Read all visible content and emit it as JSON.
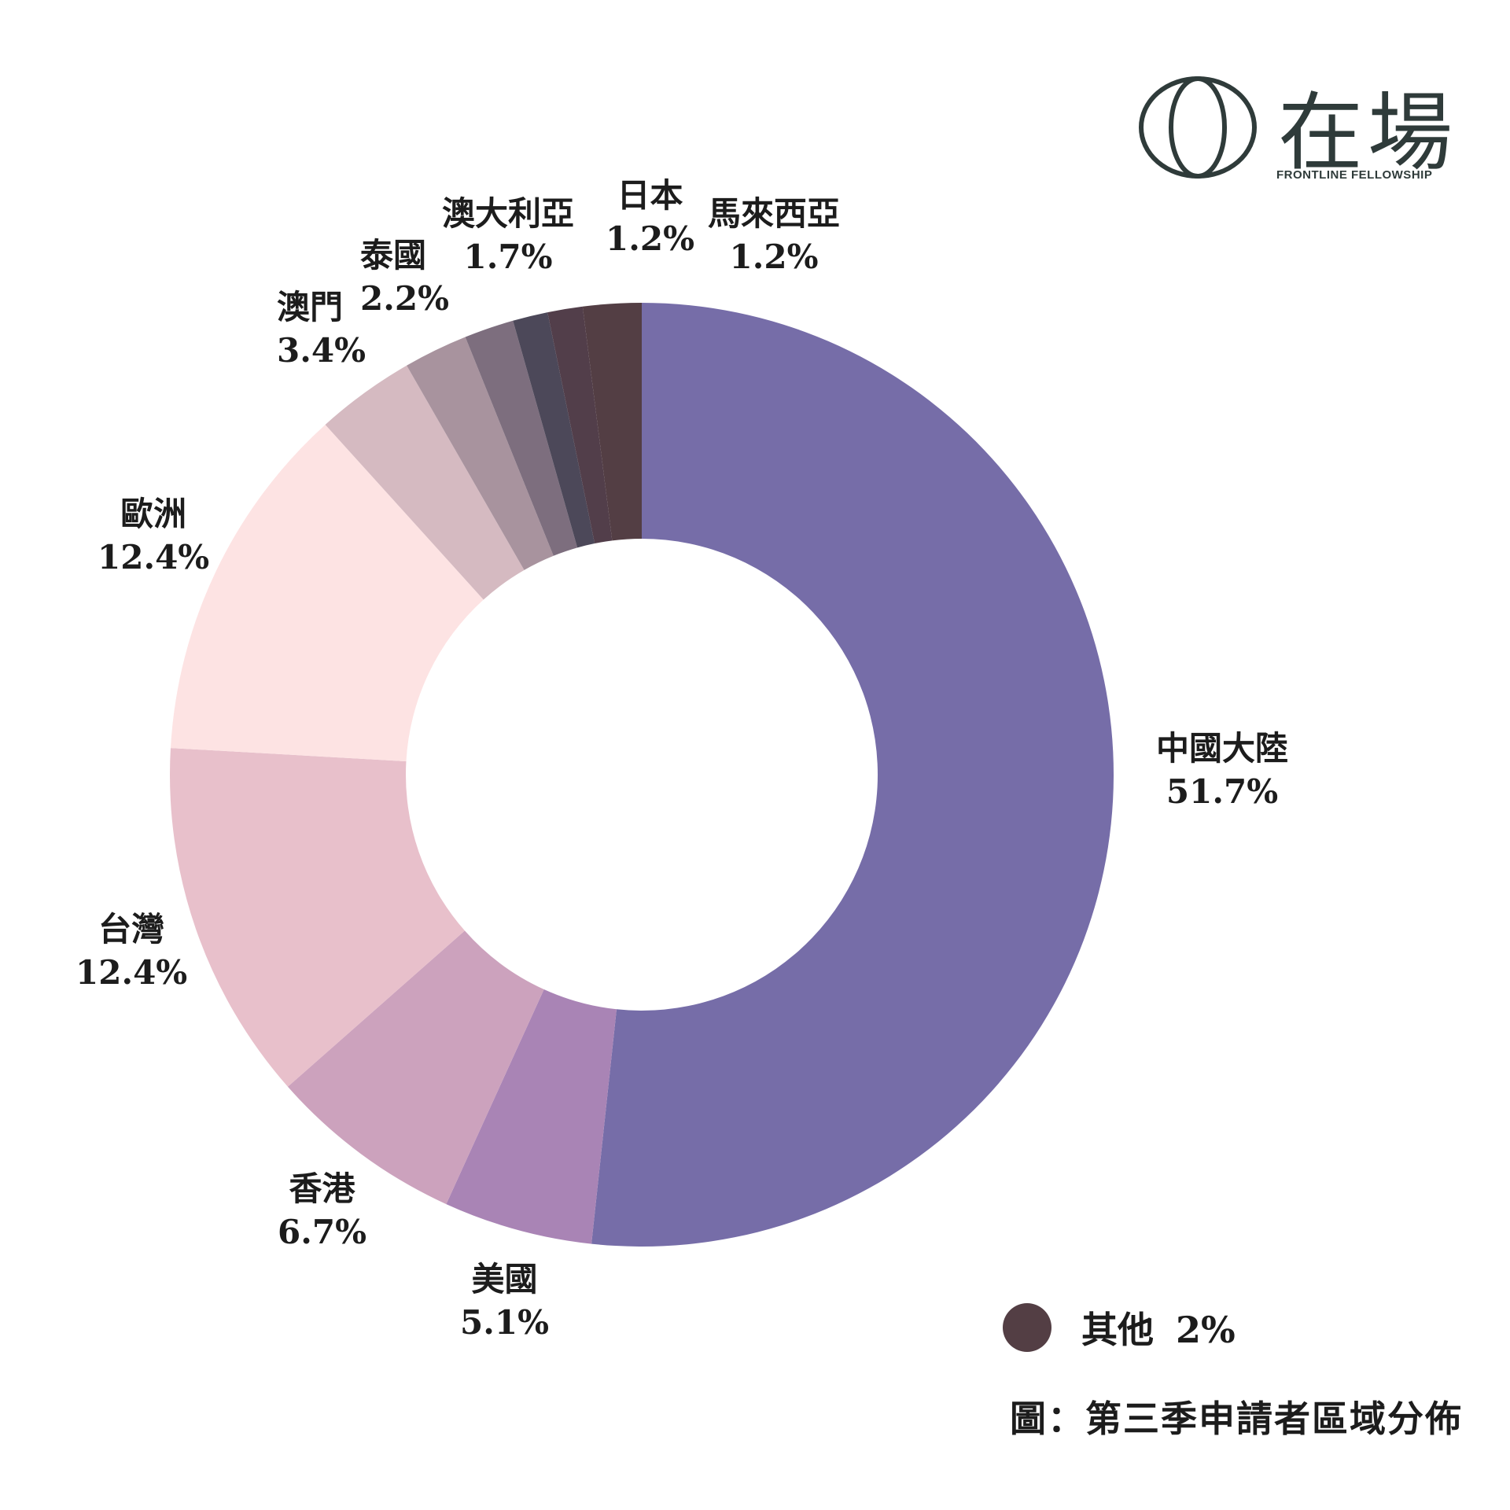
{
  "chart_data": {
    "type": "pie",
    "style": "donut",
    "slices": [
      {
        "label": "中國大陸",
        "value": 51.7,
        "pct_text": "51.7%",
        "color": "#766da8"
      },
      {
        "label": "美國",
        "value": 5.1,
        "pct_text": "5.1%",
        "color": "#a984b5"
      },
      {
        "label": "香港",
        "value": 6.7,
        "pct_text": "6.7%",
        "color": "#cca2bd"
      },
      {
        "label": "台灣",
        "value": 12.4,
        "pct_text": "12.4%",
        "color": "#e8c0cb"
      },
      {
        "label": "歐洲",
        "value": 12.4,
        "pct_text": "12.4%",
        "color": "#fde3e3"
      },
      {
        "label": "澳門",
        "value": 3.4,
        "pct_text": "3.4%",
        "color": "#d5bac1"
      },
      {
        "label": "泰國",
        "value": 2.2,
        "pct_text": "2.2%",
        "color": "#a8939e"
      },
      {
        "label": "澳大利亞",
        "value": 1.7,
        "pct_text": "1.7%",
        "color": "#7d6e7e"
      },
      {
        "label": "日本",
        "value": 1.2,
        "pct_text": "1.2%",
        "color": "#4c4859"
      },
      {
        "label": "馬來西亞",
        "value": 1.2,
        "pct_text": "1.2%",
        "color": "#523e4a"
      },
      {
        "label": "其他",
        "value": 2,
        "pct_text": "2%",
        "color": "#533e44"
      }
    ],
    "legend": {
      "label": "其他",
      "value_text": "2%",
      "color": "#533e44",
      "position": "bottom-right"
    }
  },
  "caption": "圖：第三季申請者區域分佈",
  "logo": {
    "word": "在場",
    "sub": "FRONTLINE FELLOWSHIP",
    "color": "#2f3b3a"
  }
}
